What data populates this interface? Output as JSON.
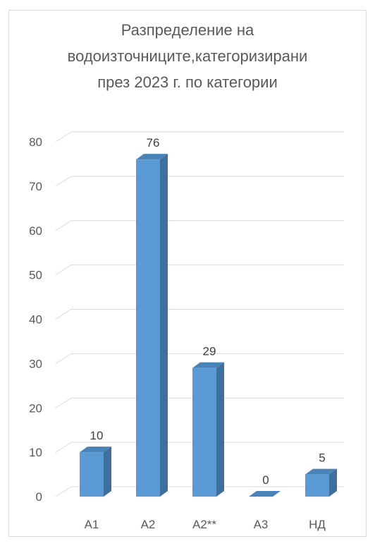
{
  "chart_data": {
    "type": "bar",
    "title": [
      "Разпределение на",
      "водоизточниците,категоризирани",
      "през 2023 г. по категории"
    ],
    "categories": [
      "А1",
      "А2",
      "А2**",
      "А3",
      "НД"
    ],
    "values": [
      10,
      76,
      29,
      0,
      5
    ],
    "data_labels": [
      "10",
      "76",
      "29",
      "0",
      "5"
    ],
    "ylim": [
      0,
      80
    ],
    "yticks": [
      "0",
      "10",
      "20",
      "30",
      "40",
      "50",
      "60",
      "70",
      "80"
    ],
    "xlabel": "",
    "ylabel": "",
    "grid": true,
    "legend": "none",
    "style_3d": true,
    "colors": {
      "bar_front": "#5b9bd5",
      "bar_side": "#3f6f9d",
      "bar_top": "#4a83b8",
      "grid": "#d9d9d9",
      "text": "#595959"
    }
  }
}
